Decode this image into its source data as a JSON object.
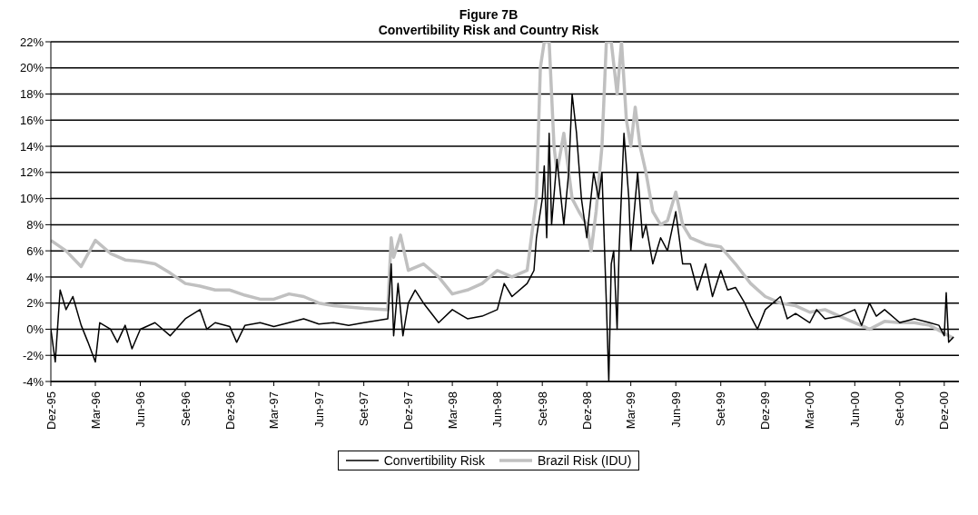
{
  "chart_data": {
    "type": "line",
    "title": "Figure 7B",
    "subtitle": "Convertibility Risk and Country Risk",
    "legend": "bottom",
    "grid": "y",
    "line_style": "solid",
    "marker": "none",
    "xlim": [
      "1995-12-01",
      "2000-12-31"
    ],
    "xticks": [
      {
        "value": "1995-12-01",
        "label": "Dez-95"
      },
      {
        "value": "1996-03-01",
        "label": "Mar-96"
      },
      {
        "value": "1996-06-01",
        "label": "Jun-96"
      },
      {
        "value": "1996-09-01",
        "label": "Set-96"
      },
      {
        "value": "1996-12-01",
        "label": "Dez-96"
      },
      {
        "value": "1997-03-01",
        "label": "Mar-97"
      },
      {
        "value": "1997-06-01",
        "label": "Jun-97"
      },
      {
        "value": "1997-09-01",
        "label": "Set-97"
      },
      {
        "value": "1997-12-01",
        "label": "Dez-97"
      },
      {
        "value": "1998-03-01",
        "label": "Mar-98"
      },
      {
        "value": "1998-06-01",
        "label": "Jun-98"
      },
      {
        "value": "1998-09-01",
        "label": "Set-98"
      },
      {
        "value": "1998-12-01",
        "label": "Dez-98"
      },
      {
        "value": "1999-03-01",
        "label": "Mar-99"
      },
      {
        "value": "1999-06-01",
        "label": "Jun-99"
      },
      {
        "value": "1999-09-01",
        "label": "Set-99"
      },
      {
        "value": "1999-12-01",
        "label": "Dez-99"
      },
      {
        "value": "2000-03-01",
        "label": "Mar-00"
      },
      {
        "value": "2000-06-01",
        "label": "Jun-00"
      },
      {
        "value": "2000-09-01",
        "label": "Set-00"
      },
      {
        "value": "2000-12-01",
        "label": "Dez-00"
      }
    ],
    "ylim": [
      -4,
      22
    ],
    "yticks": [
      {
        "value": -4,
        "label": "-4%"
      },
      {
        "value": -2,
        "label": "-2%"
      },
      {
        "value": 0,
        "label": "0%"
      },
      {
        "value": 2,
        "label": "2%"
      },
      {
        "value": 4,
        "label": "4%"
      },
      {
        "value": 6,
        "label": "6%"
      },
      {
        "value": 8,
        "label": "8%"
      },
      {
        "value": 10,
        "label": "10%"
      },
      {
        "value": 12,
        "label": "12%"
      },
      {
        "value": 14,
        "label": "14%"
      },
      {
        "value": 16,
        "label": "16%"
      },
      {
        "value": 18,
        "label": "18%"
      },
      {
        "value": 20,
        "label": "20%"
      },
      {
        "value": 22,
        "label": "22%"
      }
    ],
    "series": [
      {
        "name": "Convertibility Risk",
        "color": "#000000",
        "x": [
          "1995-12-01",
          "1995-12-10",
          "1995-12-20",
          "1996-01-01",
          "1996-01-15",
          "1996-02-01",
          "1996-02-15",
          "1996-03-01",
          "1996-03-10",
          "1996-04-01",
          "1996-04-15",
          "1996-05-01",
          "1996-05-15",
          "1996-06-01",
          "1996-07-01",
          "1996-08-01",
          "1996-09-01",
          "1996-10-01",
          "1996-10-15",
          "1996-11-01",
          "1996-12-01",
          "1996-12-15",
          "1997-01-01",
          "1997-02-01",
          "1997-03-01",
          "1997-04-01",
          "1997-05-01",
          "1997-06-01",
          "1997-07-01",
          "1997-08-01",
          "1997-09-01",
          "1997-10-20",
          "1997-10-27",
          "1997-11-01",
          "1997-11-10",
          "1997-11-20",
          "1997-12-01",
          "1997-12-15",
          "1998-01-01",
          "1998-02-01",
          "1998-03-01",
          "1998-04-01",
          "1998-05-01",
          "1998-06-01",
          "1998-06-15",
          "1998-07-01",
          "1998-08-01",
          "1998-08-15",
          "1998-08-20",
          "1998-09-01",
          "1998-09-05",
          "1998-09-10",
          "1998-09-15",
          "1998-09-20",
          "1998-10-01",
          "1998-10-15",
          "1998-10-25",
          "1998-11-01",
          "1998-11-10",
          "1998-11-20",
          "1998-12-01",
          "1998-12-15",
          "1998-12-25",
          "1999-01-01",
          "1999-01-10",
          "1999-01-15",
          "1999-01-20",
          "1999-01-25",
          "1999-02-01",
          "1999-02-05",
          "1999-02-15",
          "1999-02-25",
          "1999-03-01",
          "1999-03-15",
          "1999-03-25",
          "1999-04-01",
          "1999-04-15",
          "1999-05-01",
          "1999-05-15",
          "1999-06-01",
          "1999-06-15",
          "1999-07-01",
          "1999-07-15",
          "1999-08-01",
          "1999-08-15",
          "1999-09-01",
          "1999-09-15",
          "1999-10-01",
          "1999-10-20",
          "1999-11-01",
          "1999-11-15",
          "1999-12-01",
          "2000-01-01",
          "2000-01-15",
          "2000-02-01",
          "2000-03-01",
          "2000-03-15",
          "2000-04-01",
          "2000-05-01",
          "2000-06-01",
          "2000-06-15",
          "2000-07-01",
          "2000-07-15",
          "2000-08-01",
          "2000-09-01",
          "2000-10-01",
          "2000-11-01",
          "2000-11-20",
          "2000-12-01",
          "2000-12-05",
          "2000-12-10",
          "2000-12-20"
        ],
        "values": [
          0,
          -2.5,
          3,
          1.5,
          2.5,
          0.3,
          -1,
          -2.5,
          0.5,
          0,
          -1,
          0.3,
          -1.5,
          0,
          0.5,
          -0.5,
          0.8,
          1.5,
          0,
          0.5,
          0.2,
          -1,
          0.3,
          0.5,
          0.2,
          0.5,
          0.8,
          0.4,
          0.5,
          0.3,
          0.5,
          0.8,
          5,
          -0.5,
          3.5,
          -0.5,
          2,
          3,
          2,
          0.5,
          1.5,
          0.8,
          1,
          1.5,
          3.5,
          2.5,
          3.5,
          4.5,
          7,
          10,
          12.5,
          7,
          15,
          8,
          13,
          8,
          12,
          18,
          15,
          10,
          7,
          12,
          10,
          12,
          2,
          -4,
          5,
          6,
          0,
          6,
          15,
          10,
          6,
          12,
          7,
          8,
          5,
          7,
          6,
          9,
          5,
          5,
          3,
          5,
          2.5,
          4.5,
          3,
          3.2,
          2,
          1,
          0,
          1.5,
          2.5,
          0.8,
          1.2,
          0.5,
          1.5,
          0.8,
          1,
          1.5,
          0.3,
          2,
          1,
          1.5,
          0.5,
          0.8,
          0.5,
          0.3,
          -0.5,
          2.8,
          -1,
          -0.6
        ]
      },
      {
        "name": "Brazil Risk (IDU)",
        "color": "#c0c0c0",
        "x": [
          "1995-12-01",
          "1996-01-01",
          "1996-02-01",
          "1996-03-01",
          "1996-04-01",
          "1996-05-01",
          "1996-06-01",
          "1996-07-01",
          "1996-08-01",
          "1996-09-01",
          "1996-10-01",
          "1996-11-01",
          "1996-12-01",
          "1997-01-01",
          "1997-02-01",
          "1997-03-01",
          "1997-04-01",
          "1997-05-01",
          "1997-06-01",
          "1997-07-01",
          "1997-08-01",
          "1997-09-01",
          "1997-10-20",
          "1997-10-27",
          "1997-11-01",
          "1997-11-15",
          "1997-12-01",
          "1998-01-01",
          "1998-02-01",
          "1998-03-01",
          "1998-04-01",
          "1998-05-01",
          "1998-06-01",
          "1998-07-01",
          "1998-08-01",
          "1998-08-20",
          "1998-08-28",
          "1998-09-05",
          "1998-09-15",
          "1998-09-25",
          "1998-10-01",
          "1998-10-15",
          "1998-11-01",
          "1998-11-15",
          "1998-12-01",
          "1998-12-10",
          "1998-12-20",
          "1999-01-01",
          "1999-01-10",
          "1999-01-20",
          "1999-02-01",
          "1999-02-10",
          "1999-02-20",
          "1999-03-01",
          "1999-03-10",
          "1999-03-20",
          "1999-04-01",
          "1999-04-15",
          "1999-05-01",
          "1999-05-15",
          "1999-06-01",
          "1999-06-15",
          "1999-07-01",
          "1999-08-01",
          "1999-09-01",
          "1999-10-01",
          "1999-11-01",
          "1999-12-01",
          "2000-01-01",
          "2000-02-01",
          "2000-03-01",
          "2000-04-01",
          "2000-05-01",
          "2000-06-01",
          "2000-06-20",
          "2000-07-01",
          "2000-08-01",
          "2000-09-01",
          "2000-10-01",
          "2000-11-01",
          "2000-12-20"
        ],
        "values": [
          6.8,
          6,
          4.8,
          6.8,
          5.8,
          5.3,
          5.2,
          5,
          4.3,
          3.5,
          3.3,
          3,
          3,
          2.6,
          2.3,
          2.3,
          2.7,
          2.5,
          2,
          1.8,
          1.7,
          1.6,
          1.5,
          7,
          5.5,
          7.2,
          4.5,
          5,
          4,
          2.7,
          3,
          3.5,
          4.5,
          4,
          4.5,
          10,
          20,
          22,
          22,
          14,
          12,
          15,
          10,
          9,
          8,
          6,
          9,
          14,
          22,
          22,
          18,
          22,
          16,
          14,
          17,
          14,
          12,
          9,
          8,
          8.3,
          10.5,
          8,
          7,
          6.5,
          6.3,
          5,
          3.5,
          2.5,
          2,
          1.8,
          1.3,
          1.5,
          1,
          0.5,
          0.2,
          0,
          0.6,
          0.5,
          0.5,
          0.3,
          -0.7
        ]
      }
    ]
  }
}
